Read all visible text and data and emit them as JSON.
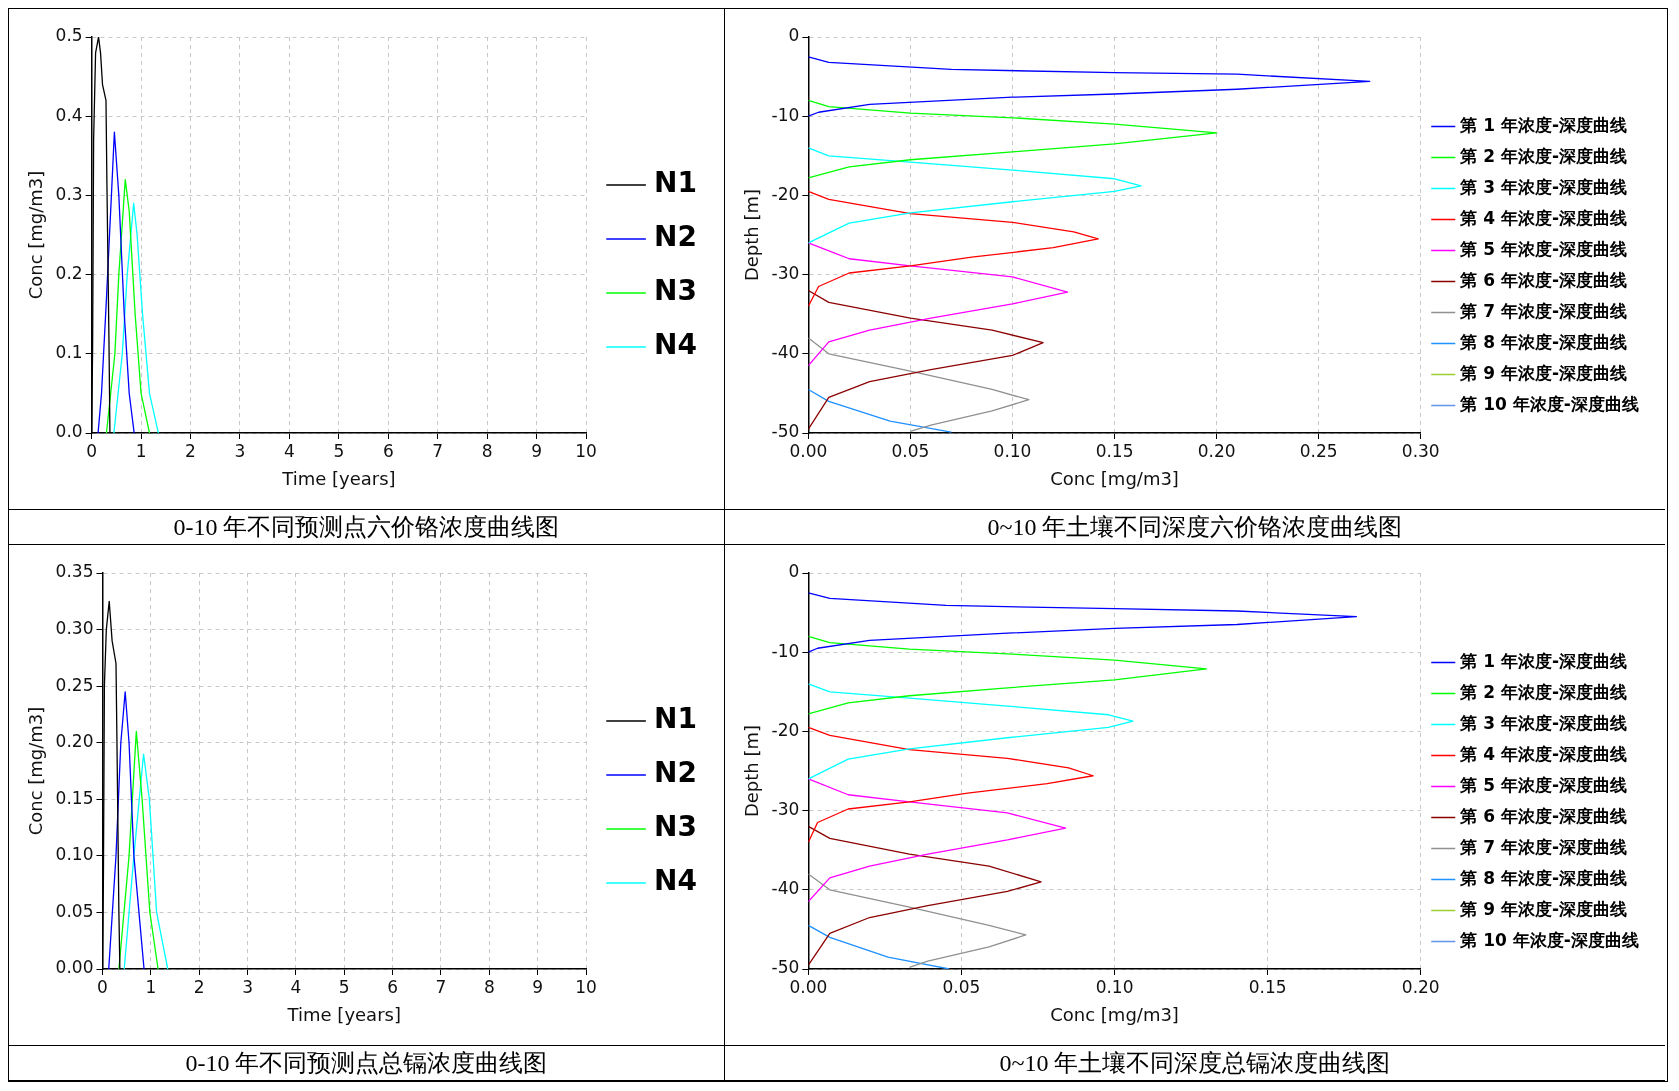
{
  "chart_data": [
    {
      "type": "line",
      "title": "0-10 年不同预测点六价铬浓度曲线图",
      "xlabel": "Time [years]",
      "ylabel": "Conc [mg/m3]",
      "xlim": [
        0,
        10
      ],
      "xticks": [
        0,
        1,
        2,
        3,
        4,
        5,
        6,
        7,
        8,
        9,
        10
      ],
      "ylim": [
        0,
        0.5
      ],
      "yticks": [
        {
          "value": 0,
          "label": "0.0"
        },
        0.1,
        0.2,
        0.3,
        0.4,
        0.5
      ],
      "grid": true,
      "legend": "right",
      "marker": "none",
      "line_style": "solid",
      "series": [
        {
          "name": "N1",
          "color": "#000000",
          "x": [
            0,
            0.02,
            0.04,
            0.08,
            0.14,
            0.18,
            0.22,
            0.29,
            0.31,
            0.35,
            0.37
          ],
          "values": [
            0,
            0.11,
            0.37,
            0.48,
            0.5,
            0.48,
            0.44,
            0.42,
            0.31,
            0.12,
            0
          ]
        },
        {
          "name": "N2",
          "color": "#0000ff",
          "x": [
            0.13,
            0.2,
            0.3,
            0.4,
            0.46,
            0.55,
            0.66,
            0.76,
            0.86
          ],
          "values": [
            0,
            0.05,
            0.17,
            0.3,
            0.38,
            0.3,
            0.15,
            0.05,
            0
          ]
        },
        {
          "name": "N3",
          "color": "#00ff00",
          "x": [
            0.3,
            0.47,
            0.55,
            0.68,
            0.76,
            0.88,
            1.0,
            1.17
          ],
          "values": [
            0,
            0.1,
            0.2,
            0.32,
            0.28,
            0.15,
            0.05,
            0
          ]
        },
        {
          "name": "N4",
          "color": "#00ffff",
          "x": [
            0.45,
            0.62,
            0.72,
            0.85,
            0.92,
            1.03,
            1.17,
            1.35
          ],
          "values": [
            0,
            0.1,
            0.2,
            0.29,
            0.25,
            0.15,
            0.05,
            0
          ]
        }
      ]
    },
    {
      "type": "line",
      "title": "0~10 年土壤不同深度六价铬浓度曲线图",
      "xlabel": "Conc [mg/m3]",
      "ylabel": "Depth [m]",
      "xlim": [
        0,
        0.3
      ],
      "xticks": [
        {
          "value": 0,
          "label": "0.00"
        },
        0.05,
        {
          "value": 0.1,
          "label": "0.10"
        },
        0.15,
        {
          "value": 0.2,
          "label": "0.20"
        },
        0.25,
        {
          "value": 0.3,
          "label": "0.30"
        }
      ],
      "ylim": [
        -50,
        0
      ],
      "yticks": [
        -50,
        -40,
        -30,
        -20,
        -10,
        0
      ],
      "grid": true,
      "legend": "right",
      "marker": "none",
      "line_style": "solid",
      "series": [
        {
          "name": "第 1 年浓度-深度曲线",
          "color": "#0000ff",
          "x": [
            0,
            0.01,
            0.07,
            0.15,
            0.21,
            0.275,
            0.21,
            0.15,
            0.1,
            0.03,
            0.005,
            0
          ],
          "values": [
            -2.5,
            -3.2,
            -4.1,
            -4.5,
            -4.7,
            -5.6,
            -6.6,
            -7.2,
            -7.6,
            -8.5,
            -9.5,
            -10
          ]
        },
        {
          "name": "第 2 年浓度-深度曲线",
          "color": "#00ff00",
          "x": [
            0,
            0.01,
            0.05,
            0.1,
            0.15,
            0.2,
            0.15,
            0.1,
            0.05,
            0.02,
            0
          ],
          "values": [
            -8,
            -8.8,
            -9.6,
            -10.2,
            -11,
            -12.1,
            -13.5,
            -14.5,
            -15.5,
            -16.4,
            -17.8
          ]
        },
        {
          "name": "第 3 年浓度-深度曲线",
          "color": "#00ffff",
          "x": [
            0,
            0.01,
            0.05,
            0.1,
            0.15,
            0.163,
            0.15,
            0.1,
            0.05,
            0.02,
            0
          ],
          "values": [
            -14,
            -15,
            -15.8,
            -16.8,
            -17.9,
            -18.8,
            -19.5,
            -20.8,
            -22.2,
            -23.5,
            -26
          ]
        },
        {
          "name": "第 4 年浓度-深度曲线",
          "color": "#ff0000",
          "x": [
            0,
            0.01,
            0.05,
            0.1,
            0.13,
            0.142,
            0.12,
            0.08,
            0.05,
            0.02,
            0.005,
            0
          ],
          "values": [
            -19.5,
            -20.5,
            -22.3,
            -23.4,
            -24.6,
            -25.5,
            -26.6,
            -27.8,
            -28.9,
            -29.8,
            -31.5,
            -34
          ]
        },
        {
          "name": "第 5 年浓度-深度曲线",
          "color": "#ff00ff",
          "x": [
            0,
            0.02,
            0.05,
            0.1,
            0.127,
            0.1,
            0.06,
            0.03,
            0.01,
            0
          ],
          "values": [
            -26,
            -28,
            -28.9,
            -30.3,
            -32.2,
            -33.7,
            -35.5,
            -37,
            -38.5,
            -41.5
          ]
        },
        {
          "name": "第 6 年浓度-深度曲线",
          "color": "#8b0000",
          "x": [
            0,
            0.01,
            0.05,
            0.09,
            0.115,
            0.1,
            0.06,
            0.03,
            0.01,
            0
          ],
          "values": [
            -32,
            -33.5,
            -35.5,
            -37,
            -38.6,
            -40.2,
            -42,
            -43.5,
            -45.5,
            -49.5
          ]
        },
        {
          "name": "第 7 年浓度-深度曲线",
          "color": "#909090",
          "x": [
            0,
            0.01,
            0.05,
            0.09,
            0.108,
            0.09,
            0.06,
            0.05
          ],
          "values": [
            -38,
            -40,
            -42.2,
            -44.5,
            -45.8,
            -47.2,
            -49,
            -49.8
          ]
        },
        {
          "name": "第 8 年浓度-深度曲线",
          "color": "#1e90ff",
          "x": [
            0,
            0.01,
            0.04,
            0.07
          ],
          "values": [
            -44.5,
            -46,
            -48.5,
            -49.9
          ]
        },
        {
          "name": "第 9 年浓度-深度曲线",
          "color": "#9acd32"
        },
        {
          "name": "第 10 年浓度-深度曲线",
          "color": "#6495ed"
        }
      ]
    },
    {
      "type": "line",
      "title": "0-10 年不同预测点总镉浓度曲线图",
      "xlabel": "Time [years]",
      "ylabel": "Conc [mg/m3]",
      "xlim": [
        0,
        10
      ],
      "xticks": [
        0,
        1,
        2,
        3,
        4,
        5,
        6,
        7,
        8,
        9,
        10
      ],
      "ylim": [
        0,
        0.35
      ],
      "yticks": [
        {
          "value": 0,
          "label": "0.00"
        },
        0.05,
        {
          "value": 0.1,
          "label": "0.10"
        },
        0.15,
        {
          "value": 0.2,
          "label": "0.20"
        },
        0.25,
        {
          "value": 0.3,
          "label": "0.30"
        },
        0.35
      ],
      "grid": true,
      "legend": "right",
      "marker": "none",
      "line_style": "solid",
      "series": [
        {
          "name": "N1",
          "color": "#000000",
          "x": [
            0,
            0.02,
            0.04,
            0.08,
            0.14,
            0.2,
            0.28,
            0.3,
            0.34,
            0.36
          ],
          "values": [
            0,
            0.08,
            0.25,
            0.3,
            0.325,
            0.29,
            0.27,
            0.2,
            0.05,
            0
          ]
        },
        {
          "name": "N2",
          "color": "#0000ff",
          "x": [
            0.13,
            0.28,
            0.38,
            0.47,
            0.55,
            0.65,
            0.86
          ],
          "values": [
            0,
            0.1,
            0.2,
            0.245,
            0.2,
            0.1,
            0
          ]
        },
        {
          "name": "N3",
          "color": "#00ff00",
          "x": [
            0.34,
            0.55,
            0.7,
            0.82,
            0.98,
            1.15
          ],
          "values": [
            0,
            0.1,
            0.21,
            0.15,
            0.05,
            0
          ]
        },
        {
          "name": "N4",
          "color": "#00ffff",
          "x": [
            0.45,
            0.65,
            0.85,
            0.97,
            1.12,
            1.35
          ],
          "values": [
            0,
            0.1,
            0.19,
            0.15,
            0.05,
            0
          ]
        }
      ]
    },
    {
      "type": "line",
      "title": "0~10 年土壤不同深度总镉浓度曲线图",
      "xlabel": "Conc [mg/m3]",
      "ylabel": "Depth [m]",
      "xlim": [
        0,
        0.2
      ],
      "xticks": [
        {
          "value": 0,
          "label": "0.00"
        },
        0.05,
        {
          "value": 0.1,
          "label": "0.10"
        },
        0.15,
        {
          "value": 0.2,
          "label": "0.20"
        }
      ],
      "ylim": [
        -50,
        0
      ],
      "yticks": [
        -50,
        -40,
        -30,
        -20,
        -10,
        0
      ],
      "grid": true,
      "legend": "right",
      "marker": "none",
      "line_style": "solid",
      "series": [
        {
          "name": "第 1 年浓度-深度曲线",
          "color": "#0000ff",
          "x": [
            0,
            0.007,
            0.045,
            0.1,
            0.14,
            0.179,
            0.14,
            0.1,
            0.065,
            0.02,
            0.003,
            0
          ],
          "values": [
            -2.5,
            -3.2,
            -4.1,
            -4.5,
            -4.8,
            -5.5,
            -6.5,
            -7,
            -7.6,
            -8.5,
            -9.5,
            -10
          ]
        },
        {
          "name": "第 2 年浓度-深度曲线",
          "color": "#00ff00",
          "x": [
            0,
            0.007,
            0.033,
            0.065,
            0.1,
            0.13,
            0.1,
            0.065,
            0.033,
            0.013,
            0
          ],
          "values": [
            -8,
            -8.8,
            -9.6,
            -10.2,
            -11,
            -12.1,
            -13.5,
            -14.5,
            -15.5,
            -16.4,
            -17.8
          ]
        },
        {
          "name": "第 3 年浓度-深度曲线",
          "color": "#00ffff",
          "x": [
            0,
            0.007,
            0.033,
            0.065,
            0.098,
            0.106,
            0.098,
            0.065,
            0.033,
            0.013,
            0
          ],
          "values": [
            -14,
            -15,
            -15.8,
            -16.8,
            -17.9,
            -18.7,
            -19.5,
            -20.8,
            -22.2,
            -23.5,
            -26
          ]
        },
        {
          "name": "第 4 年浓度-深度曲线",
          "color": "#ff0000",
          "x": [
            0,
            0.007,
            0.033,
            0.065,
            0.085,
            0.093,
            0.078,
            0.052,
            0.033,
            0.013,
            0.003,
            0
          ],
          "values": [
            -19.5,
            -20.5,
            -22.3,
            -23.4,
            -24.6,
            -25.6,
            -26.6,
            -27.8,
            -28.9,
            -29.8,
            -31.5,
            -34
          ]
        },
        {
          "name": "第 5 年浓度-深度曲线",
          "color": "#ff00ff",
          "x": [
            0,
            0.013,
            0.033,
            0.065,
            0.084,
            0.065,
            0.039,
            0.02,
            0.007,
            0
          ],
          "values": [
            -26,
            -28,
            -28.9,
            -30.3,
            -32.2,
            -33.7,
            -35.5,
            -37,
            -38.5,
            -41.5
          ]
        },
        {
          "name": "第 6 年浓度-深度曲线",
          "color": "#8b0000",
          "x": [
            0,
            0.007,
            0.033,
            0.059,
            0.076,
            0.065,
            0.039,
            0.02,
            0.007,
            0
          ],
          "values": [
            -32,
            -33.5,
            -35.5,
            -37,
            -39,
            -40.2,
            -42,
            -43.5,
            -45.5,
            -49.5
          ]
        },
        {
          "name": "第 7 年浓度-深度曲线",
          "color": "#909090",
          "x": [
            0,
            0.007,
            0.033,
            0.059,
            0.071,
            0.059,
            0.039,
            0.033
          ],
          "values": [
            -38,
            -40,
            -42.2,
            -44.5,
            -45.7,
            -47.2,
            -49,
            -49.8
          ]
        },
        {
          "name": "第 8 年浓度-深度曲线",
          "color": "#1e90ff",
          "x": [
            0,
            0.007,
            0.026,
            0.046
          ],
          "values": [
            -44.5,
            -46,
            -48.5,
            -50
          ]
        },
        {
          "name": "第 9 年浓度-深度曲线",
          "color": "#9acd32"
        },
        {
          "name": "第 10 年浓度-深度曲线",
          "color": "#6495ed"
        }
      ]
    }
  ]
}
